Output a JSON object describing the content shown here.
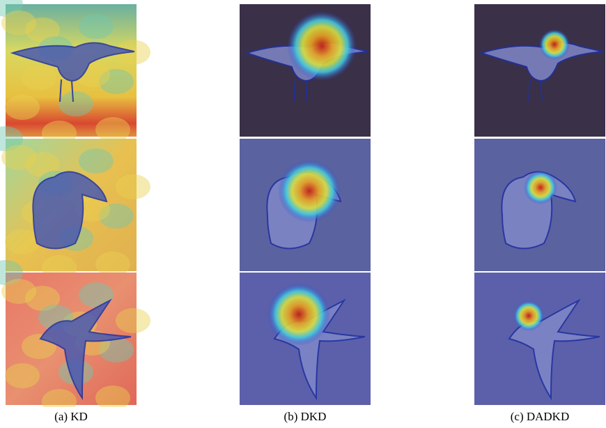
{
  "figure": {
    "columns": [
      {
        "caption": "(a) KD"
      },
      {
        "caption": "(b) DKD"
      },
      {
        "caption": "(c) DADKD"
      }
    ]
  }
}
